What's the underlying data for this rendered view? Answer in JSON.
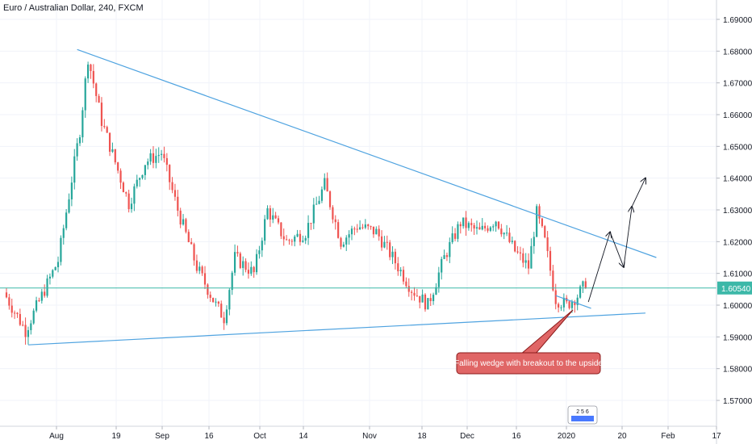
{
  "header": {
    "symbol_title": "Euro / Australian Dollar, 240, FXCM"
  },
  "annotation": {
    "text": "Falling wedge with breakout to the upside",
    "bg_color": "#e06666",
    "border_color": "#8b1a1a",
    "text_color": "#ffffff"
  },
  "colors": {
    "up": "#26a69a",
    "down": "#ef5350",
    "trendline": "#4fa3e0",
    "price_line": "#3cb8a8",
    "price_label_bg": "#3cb8a8",
    "arrow": "#131722",
    "grid": "#f0f3fa",
    "axis_text": "#131722"
  },
  "logo": {
    "icon": "tradingview-logo",
    "text": "2 5 6"
  },
  "chart_data": {
    "type": "candlestick",
    "symbol": "Euro / Australian Dollar",
    "timeframe": "240",
    "source": "FXCM",
    "ylim": [
      1.565,
      1.695
    ],
    "y_ticks": [
      "1.57000",
      "1.58000",
      "1.59000",
      "1.60000",
      "1.61000",
      "1.62000",
      "1.63000",
      "1.64000",
      "1.65000",
      "1.66000",
      "1.67000",
      "1.68000",
      "1.69000"
    ],
    "x_labels": [
      "Aug",
      "19",
      "Sep",
      "16",
      "Oct",
      "14",
      "Nov",
      "18",
      "Dec",
      "16",
      "2020",
      "20",
      "Feb",
      "17"
    ],
    "current_price": {
      "value": 1.6054,
      "label": "1.60540"
    },
    "key_prices": [
      {
        "day": 0,
        "price": 1.604
      },
      {
        "day": 8,
        "price": 1.592
      },
      {
        "day": 20,
        "price": 1.614
      },
      {
        "day": 28,
        "price": 1.655
      },
      {
        "day": 31,
        "price": 1.678
      },
      {
        "day": 36,
        "price": 1.658
      },
      {
        "day": 41,
        "price": 1.645
      },
      {
        "day": 46,
        "price": 1.632
      },
      {
        "day": 52,
        "price": 1.645
      },
      {
        "day": 58,
        "price": 1.648
      },
      {
        "day": 64,
        "price": 1.63
      },
      {
        "day": 71,
        "price": 1.612
      },
      {
        "day": 78,
        "price": 1.6
      },
      {
        "day": 81,
        "price": 1.596
      },
      {
        "day": 85,
        "price": 1.615
      },
      {
        "day": 92,
        "price": 1.61
      },
      {
        "day": 97,
        "price": 1.63
      },
      {
        "day": 104,
        "price": 1.62
      },
      {
        "day": 111,
        "price": 1.623
      },
      {
        "day": 118,
        "price": 1.638
      },
      {
        "day": 124,
        "price": 1.62
      },
      {
        "day": 130,
        "price": 1.625
      },
      {
        "day": 137,
        "price": 1.623
      },
      {
        "day": 143,
        "price": 1.615
      },
      {
        "day": 150,
        "price": 1.605
      },
      {
        "day": 156,
        "price": 1.6
      },
      {
        "day": 162,
        "price": 1.615
      },
      {
        "day": 168,
        "price": 1.626
      },
      {
        "day": 175,
        "price": 1.623
      },
      {
        "day": 181,
        "price": 1.627
      },
      {
        "day": 188,
        "price": 1.617
      },
      {
        "day": 193,
        "price": 1.612
      },
      {
        "day": 196,
        "price": 1.629
      },
      {
        "day": 199,
        "price": 1.62
      },
      {
        "day": 203,
        "price": 1.602
      },
      {
        "day": 207,
        "price": 1.6
      },
      {
        "day": 211,
        "price": 1.603
      },
      {
        "day": 213,
        "price": 1.6054
      }
    ],
    "trendlines": [
      {
        "name": "upper-resistance",
        "from": {
          "day": 26,
          "price": 1.6805
        },
        "to": {
          "day": 239,
          "price": 1.615
        }
      },
      {
        "name": "lower-support",
        "from": {
          "day": 8,
          "price": 1.5875
        },
        "to": {
          "day": 235,
          "price": 1.5975
        }
      },
      {
        "name": "wedge-top",
        "from": {
          "day": 202,
          "price": 1.603
        },
        "to": {
          "day": 215,
          "price": 1.599
        }
      }
    ],
    "projection_path": [
      {
        "day": 214,
        "price": 1.601
      },
      {
        "day": 222,
        "price": 1.623
      },
      {
        "day": 227,
        "price": 1.612
      },
      {
        "day": 230,
        "price": 1.631
      },
      {
        "day": 235,
        "price": 1.64
      }
    ]
  }
}
